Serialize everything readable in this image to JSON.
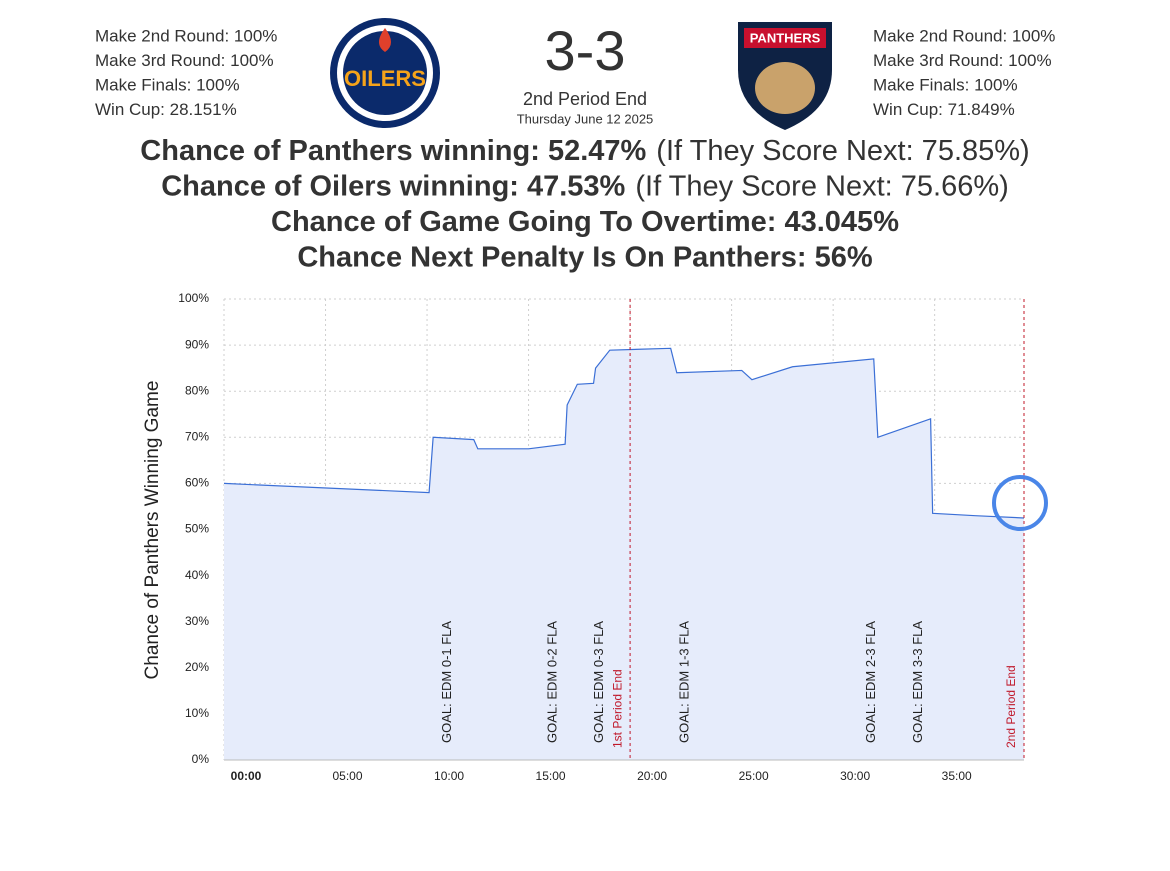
{
  "header": {
    "left_stats": [
      "Make 2nd Round: 100%",
      "Make 3rd Round: 100%",
      "Make Finals: 100%",
      "Win Cup: 28.151%"
    ],
    "left_logo": "OILERS",
    "score": "3-3",
    "period": "2nd Period End",
    "date": "Thursday June 12 2025",
    "right_logo": "PANTHERS",
    "right_stats": [
      "Make 2nd Round: 100%",
      "Make 3rd Round: 100%",
      "Make Finals: 100%",
      "Win Cup: 71.849%"
    ]
  },
  "headlines": [
    {
      "bold": "Chance of Panthers winning: 52.47%",
      "note": "(If They Score Next: 75.85%)"
    },
    {
      "bold": "Chance of Oilers winning: 47.53%",
      "note": "(If They Score Next: 75.66%)"
    },
    {
      "bold": "Chance of Game Going To Overtime: 43.045%"
    },
    {
      "bold": "Chance Next Penalty Is On Panthers: 56%"
    }
  ],
  "chart_data": {
    "type": "line",
    "y_label": "Chance of Panthers Winning Game",
    "x": [
      0,
      10.1,
      10.3,
      12.3,
      12.5,
      15.0,
      16.8,
      16.9,
      17.4,
      18.2,
      18.3,
      19.0,
      22.0,
      22.3,
      25.5,
      26.0,
      28.0,
      32.0,
      32.2,
      34.8,
      34.9,
      37.0,
      39.4
    ],
    "series": [
      {
        "name": "Panthers",
        "color": "#3b6fd6",
        "values": [
          60,
          58,
          70,
          69.5,
          67.5,
          67.5,
          68.5,
          77,
          81.5,
          81.7,
          85,
          88.9,
          89.3,
          84,
          84.5,
          82.5,
          85.3,
          87,
          70,
          74,
          53.5,
          53,
          52.5
        ]
      }
    ],
    "fill": "#e6ecfb",
    "xlim": [
      0,
      39.4
    ],
    "xticks": [
      {
        "value": 0,
        "label": "00:00"
      },
      {
        "value": 5,
        "label": "05:00"
      },
      {
        "value": 10,
        "label": "10:00"
      },
      {
        "value": 15,
        "label": "15:00"
      },
      {
        "value": 20,
        "label": "20:00"
      },
      {
        "value": 25,
        "label": "25:00"
      },
      {
        "value": 30,
        "label": "30:00"
      },
      {
        "value": 35,
        "label": "35:00"
      }
    ],
    "ylim": [
      0,
      100
    ],
    "yticks": [
      {
        "value": 0,
        "label": "0%"
      },
      {
        "value": 10,
        "label": "10%"
      },
      {
        "value": 20,
        "label": "20%"
      },
      {
        "value": 30,
        "label": "30%"
      },
      {
        "value": 40,
        "label": "40%"
      },
      {
        "value": 50,
        "label": "50%"
      },
      {
        "value": 60,
        "label": "60%"
      },
      {
        "value": 70,
        "label": "70%"
      },
      {
        "value": 80,
        "label": "80%"
      },
      {
        "value": 90,
        "label": "90%"
      },
      {
        "value": 100,
        "label": "100%"
      }
    ],
    "grid": true,
    "annotations": [
      {
        "x": 11.0,
        "label": "GOAL: EDM 0-1 FLA"
      },
      {
        "x": 16.2,
        "label": "GOAL: EDM 0-2 FLA"
      },
      {
        "x": 18.5,
        "label": "GOAL: EDM 0-3 FLA"
      },
      {
        "x": 22.7,
        "label": "GOAL: EDM 1-3 FLA"
      },
      {
        "x": 31.9,
        "label": "GOAL: EDM 2-3 FLA"
      },
      {
        "x": 34.2,
        "label": "GOAL: EDM 3-3 FLA"
      }
    ],
    "period_marks": [
      {
        "x": 20.0,
        "label": "1st Period End",
        "color": "#c0182a"
      },
      {
        "x": 39.4,
        "label": "2nd Period End",
        "color": "#c0182a"
      }
    ]
  }
}
